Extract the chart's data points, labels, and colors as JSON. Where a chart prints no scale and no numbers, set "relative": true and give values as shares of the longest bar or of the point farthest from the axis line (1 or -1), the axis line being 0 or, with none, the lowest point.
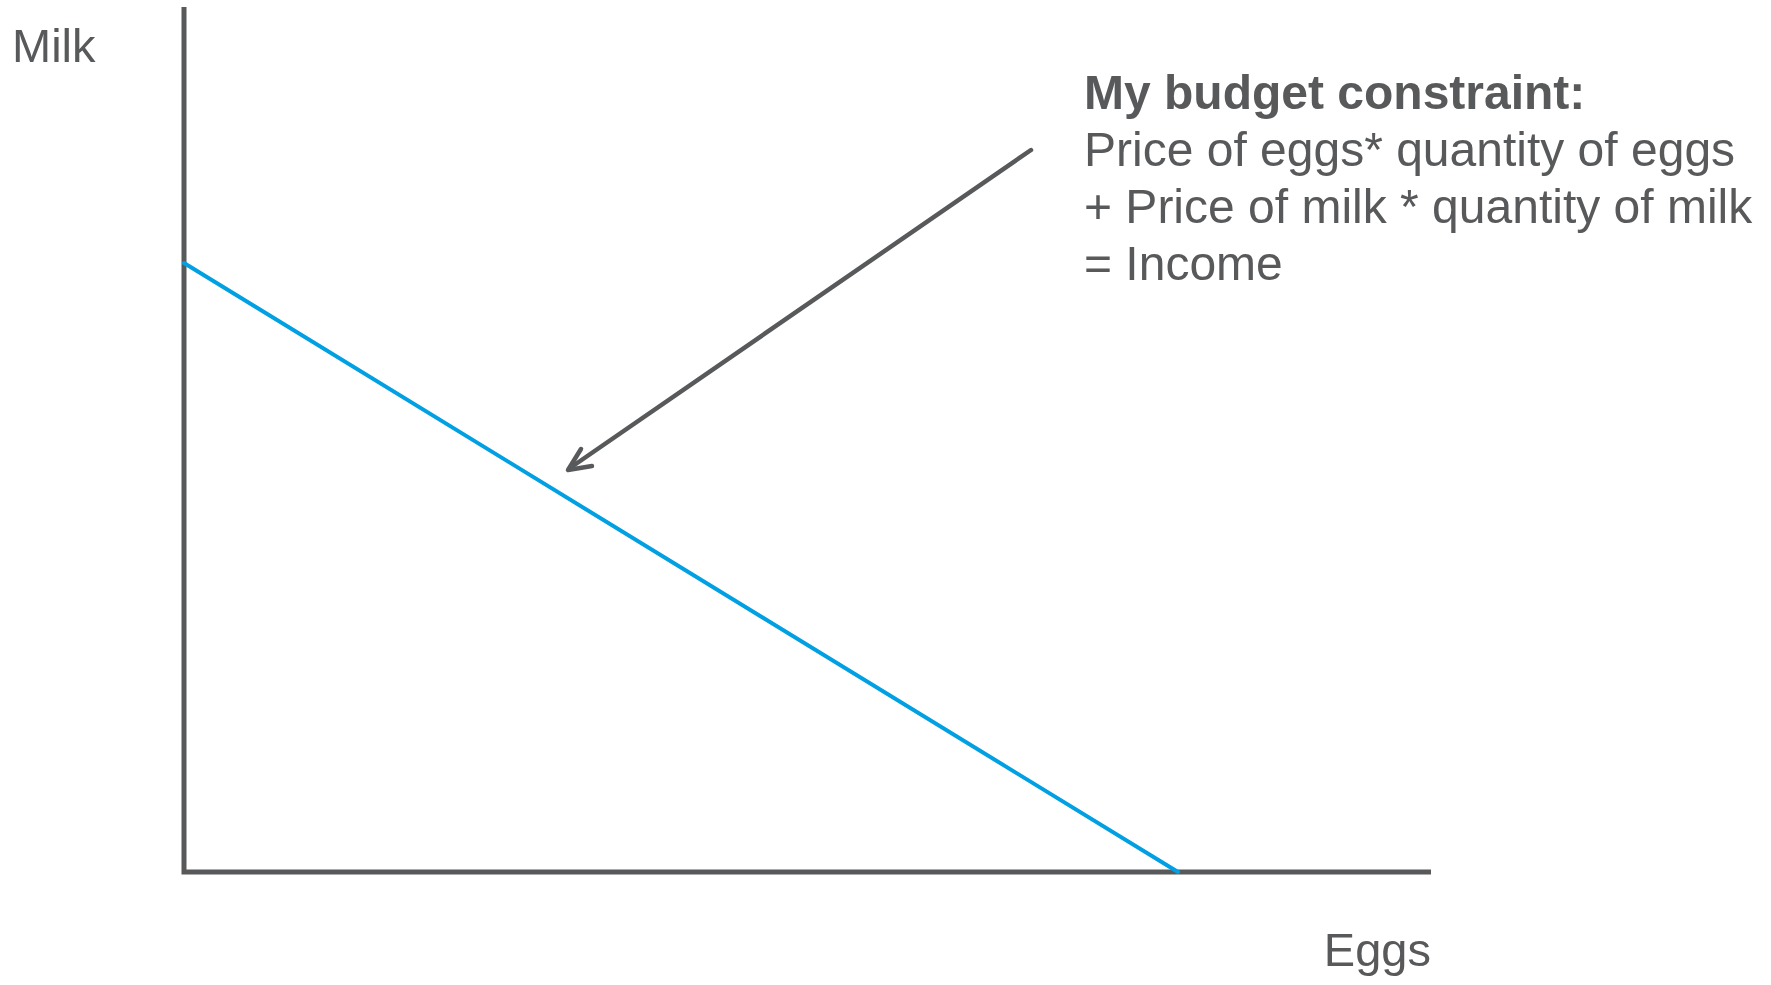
{
  "chart_data": {
    "type": "line",
    "xlabel": "Eggs",
    "ylabel": "Milk",
    "categories": [
      null,
      null
    ],
    "values": [
      1,
      0
    ],
    "color": "#00a0e3",
    "relative": true,
    "marker": "none",
    "annotations": [
      "My budget constraint:",
      "Price of eggs* quantity of eggs\n+ Price of milk * quantity of milk\n= Income"
    ]
  }
}
